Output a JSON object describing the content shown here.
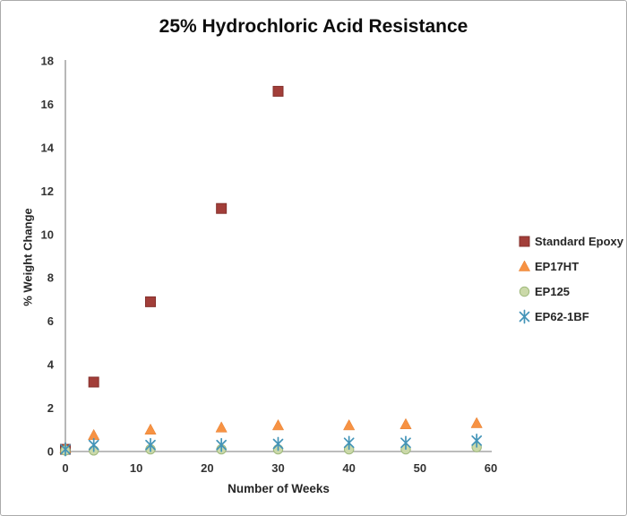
{
  "frame": {
    "background": "#FFFFFF",
    "border_color": "#ABABAB"
  },
  "chart_data": {
    "type": "scatter",
    "title": "25% Hydrochloric Acid Resistance",
    "xlabel": "Number of Weeks",
    "ylabel": "% Weight Change",
    "xlim": [
      0,
      60
    ],
    "ylim": [
      0,
      18
    ],
    "xticks": [
      0,
      10,
      20,
      30,
      40,
      50,
      60
    ],
    "yticks": [
      0,
      2,
      4,
      6,
      8,
      10,
      12,
      14,
      16,
      18
    ],
    "grid": false,
    "legend_position": "right",
    "axis_color": "#A6A6A6",
    "tick_label_color": "#333333",
    "series": [
      {
        "name": "Standard Epoxy",
        "marker": "square",
        "color": "#A23E39",
        "stroke": "#84302C",
        "points": [
          [
            0,
            0.1
          ],
          [
            4,
            3.2
          ],
          [
            12,
            6.9
          ],
          [
            22,
            11.2
          ],
          [
            30,
            16.6
          ]
        ]
      },
      {
        "name": "EP17HT",
        "marker": "triangle",
        "color": "#F79243",
        "stroke": "#E67E2E",
        "points": [
          [
            0,
            0.15
          ],
          [
            4,
            0.75
          ],
          [
            12,
            1.0
          ],
          [
            22,
            1.1
          ],
          [
            30,
            1.2
          ],
          [
            40,
            1.2
          ],
          [
            48,
            1.25
          ],
          [
            58,
            1.3
          ]
        ]
      },
      {
        "name": "EP125",
        "marker": "circle",
        "color": "#CBD9A9",
        "stroke": "#9FB97C",
        "points": [
          [
            0,
            0.05
          ],
          [
            4,
            0.05
          ],
          [
            12,
            0.1
          ],
          [
            22,
            0.1
          ],
          [
            30,
            0.1
          ],
          [
            40,
            0.1
          ],
          [
            48,
            0.1
          ],
          [
            58,
            0.2
          ]
        ]
      },
      {
        "name": "EP62-1BF",
        "marker": "asterisk",
        "color": "#4394B8",
        "stroke": "#4394B8",
        "points": [
          [
            0,
            0.1
          ],
          [
            4,
            0.3
          ],
          [
            12,
            0.3
          ],
          [
            22,
            0.3
          ],
          [
            30,
            0.35
          ],
          [
            40,
            0.4
          ],
          [
            48,
            0.4
          ],
          [
            58,
            0.5
          ]
        ]
      }
    ]
  }
}
